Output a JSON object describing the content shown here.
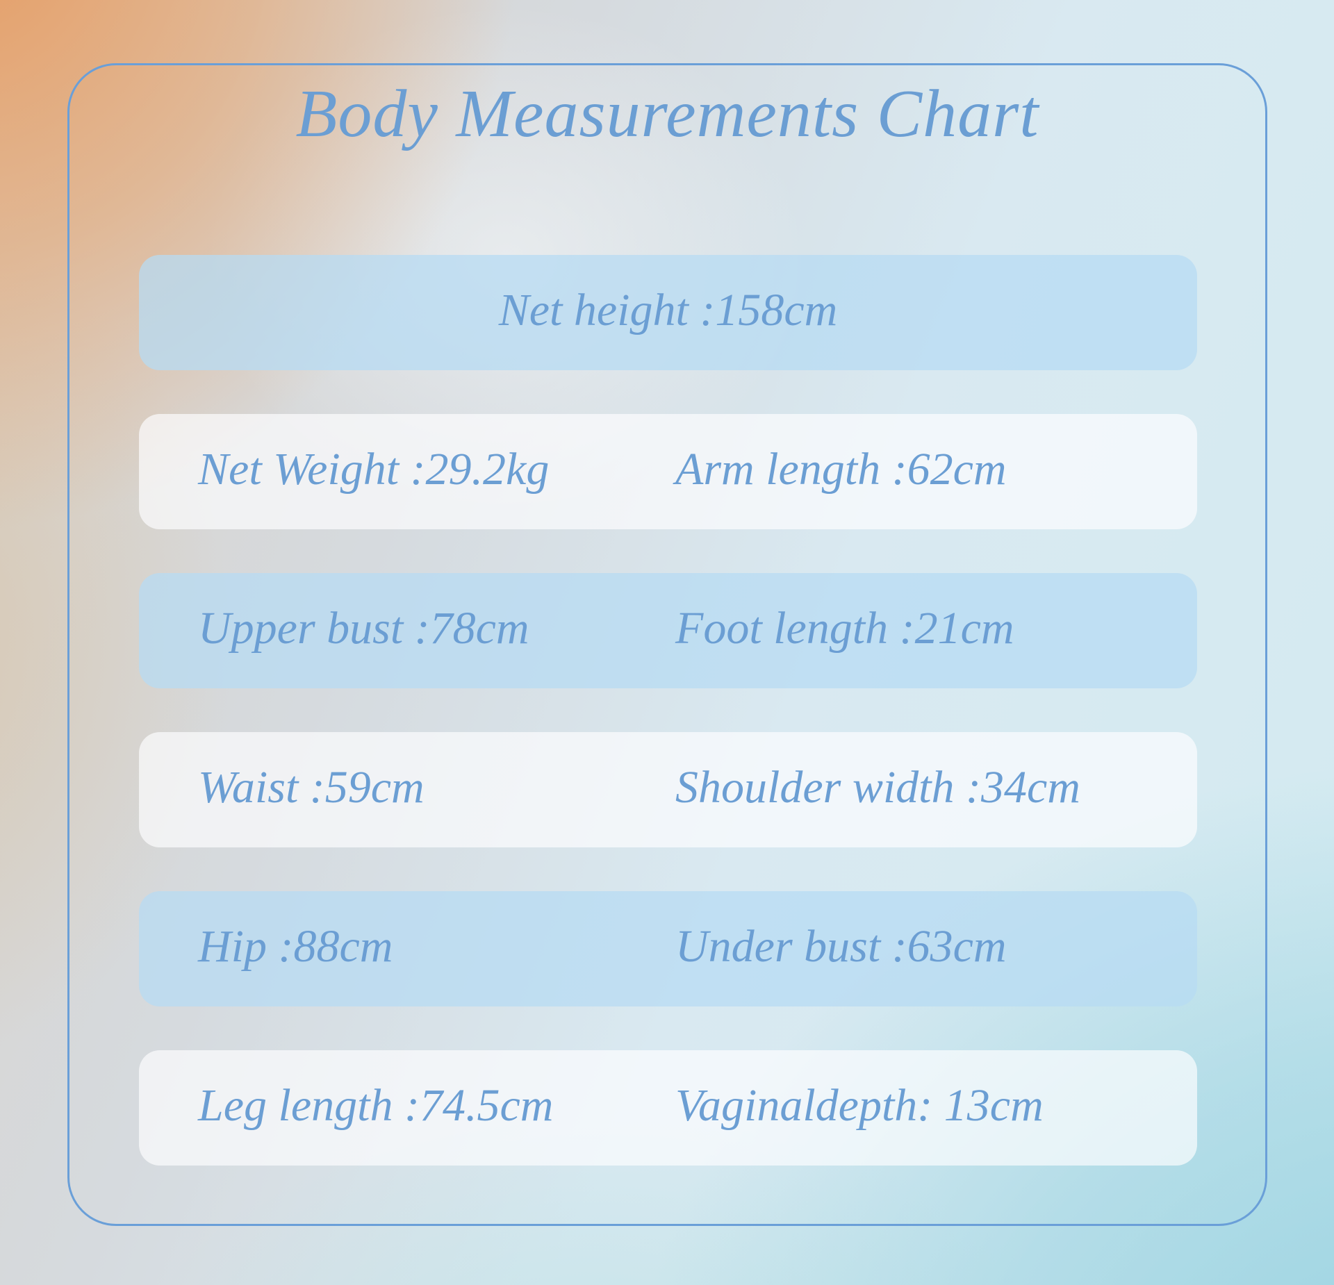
{
  "title": "Body Measurements Chart",
  "colors": {
    "text_blue": "#6b9ed3",
    "border_blue": "#6a9fd8",
    "bar_blue": "rgba(183,219,243,0.75)",
    "bar_white": "rgba(253,254,255,0.68)",
    "bg_peach": "#e79a66",
    "bg_pale_blue": "#d9e9f1",
    "bg_teal": "#94d0df"
  },
  "rows": [
    {
      "style": "blue",
      "cells": [
        {
          "text": "Net height :158cm"
        }
      ]
    },
    {
      "style": "white",
      "cells": [
        {
          "text": "Net Weight :29.2kg"
        },
        {
          "text": "Arm length :62cm"
        }
      ]
    },
    {
      "style": "blue",
      "cells": [
        {
          "text": "Upper bust :78cm"
        },
        {
          "text": "Foot length :21cm"
        }
      ]
    },
    {
      "style": "white",
      "cells": [
        {
          "text": "Waist :59cm"
        },
        {
          "text": "Shoulder width :34cm"
        }
      ]
    },
    {
      "style": "blue",
      "cells": [
        {
          "text": "Hip :88cm"
        },
        {
          "text": "Under bust :63cm"
        }
      ]
    },
    {
      "style": "white",
      "cells": [
        {
          "text": "Leg length :74.5cm"
        },
        {
          "text": "Vaginaldepth: 13cm"
        }
      ]
    }
  ]
}
